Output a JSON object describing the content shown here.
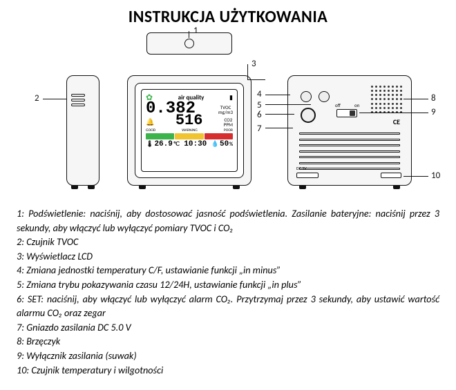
{
  "title": "INSTRUKCJA UŻYTKOWANIA",
  "callouts": {
    "n1": "1",
    "n2": "2",
    "n3": "3",
    "n4": "4",
    "n5": "5",
    "n6": "6",
    "n7": "7",
    "n8": "8",
    "n9": "9",
    "n10": "10"
  },
  "screen": {
    "air_quality_label": "air quality",
    "tvoc_value": "0.382",
    "tvoc_label": "TVOC",
    "tvoc_unit": "mg/m3",
    "co2_value": "516",
    "co2_label": "CO2",
    "co2_unit": "PPM",
    "bar_labels": {
      "good": "GOOD",
      "warning": "WARNING",
      "poor": "POOR"
    },
    "temp": "26.9",
    "temp_unit": "℃",
    "time": "10:30",
    "humidity": "50",
    "humidity_unit": "%"
  },
  "colors": {
    "bar_good": "#3cb44b",
    "bar_warn": "#f0c331",
    "bar_poor": "#d62e2e",
    "leaf": "#3cb44b",
    "screen_fg": "#000000"
  },
  "back": {
    "off_label": "off",
    "on_label": "on",
    "dc_label": "DC 5V",
    "ce": "CE"
  },
  "items": [
    "1: Podświetlenie: naciśnij, aby dostosować jasność podświetlenia. Zasilanie bateryjne: naciśnij przez 3 sekundy, aby włączyć lub wyłączyć pomiary TVOC i CO₂",
    "2: Czujnik TVOC",
    "3: Wyświetlacz LCD",
    "4: Zmiana jednostki temperatury C/F, ustawianie funkcji „in minus”",
    "5: Zmiana trybu pokazywania czasu 12/24H, ustawianie funkcji „in plus”",
    "6: SET: naciśnij, aby włączyć lub wyłączyć alarm CO₂. Przytrzymaj przez 3 sekundy, aby ustawić wartość alarmu CO₂ oraz zegar",
    "7: Gniazdo zasilania DC 5.0 V",
    "8: Brzęczyk",
    "9: Wyłącznik zasilania (suwak)",
    "10: Czujnik temperatury i wilgotności"
  ]
}
